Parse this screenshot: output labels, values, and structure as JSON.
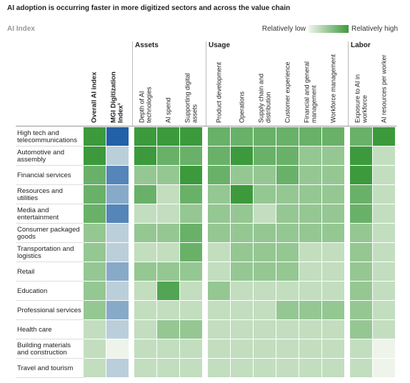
{
  "chart_data": {
    "type": "heatmap",
    "title": "AI adoption is occurring faster in more digitized sectors and across the value chain",
    "subtitle": "AI Index",
    "legend": {
      "low": "Relatively low",
      "high": "Relatively high"
    },
    "color_low": "#eef4ea",
    "vlim": [
      0,
      4
    ],
    "categories": [
      "High tech and telecommunications",
      "Automotive and assembly",
      "Financial services",
      "Resources and utilities",
      "Media and entertainment",
      "Consumer packaged goods",
      "Transportation and logistics",
      "Retail",
      "Education",
      "Professional services",
      "Health care",
      "Building materials and construction",
      "Travel and tourism"
    ],
    "groups": [
      {
        "name": null,
        "series": [
          {
            "name": "Overall AI index",
            "color": "#3c9a3c",
            "values": [
              4,
              4,
              3,
              3,
              3,
              2,
              2,
              2,
              2,
              2,
              1,
              1,
              1
            ]
          },
          {
            "name": "MGI Digitization Index¹",
            "color": "#2260a8",
            "values": [
              4,
              1,
              3,
              2,
              3,
              1,
              1,
              2,
              1,
              2,
              1,
              0,
              1
            ]
          }
        ]
      },
      {
        "name": "Assets",
        "series": [
          {
            "name": "Depth of AI technologies",
            "color": "#3c9a3c",
            "values": [
              4,
              4,
              2,
              3,
              1,
              2,
              1,
              2,
              1,
              1,
              1,
              1,
              1
            ]
          },
          {
            "name": "AI spend",
            "color": "#3c9a3c",
            "values": [
              4,
              3,
              2,
              1,
              1,
              2,
              1,
              2,
              3.5,
              1,
              2,
              1,
              1
            ]
          },
          {
            "name": "Supporting digital assets",
            "color": "#3c9a3c",
            "values": [
              4,
              3,
              4,
              3,
              2,
              3,
              3,
              2,
              1,
              1,
              2,
              1,
              1
            ]
          }
        ]
      },
      {
        "name": "Usage",
        "series": [
          {
            "name": "Product development",
            "color": "#3c9a3c",
            "values": [
              3,
              3,
              3,
              2,
              2,
              2,
              1,
              1,
              2,
              1,
              1,
              1,
              1
            ]
          },
          {
            "name": "Operations",
            "color": "#3c9a3c",
            "values": [
              3,
              4,
              2,
              4,
              2,
              2,
              2,
              2,
              1,
              1,
              1,
              1,
              1
            ]
          },
          {
            "name": "Supply chain and distribution",
            "color": "#3c9a3c",
            "values": [
              3,
              3,
              2,
              2,
              1,
              2,
              2,
              2,
              1,
              1,
              1,
              1,
              1
            ]
          },
          {
            "name": "Customer experience",
            "color": "#3c9a3c",
            "values": [
              3,
              3,
              3,
              2,
              2,
              2,
              2,
              2,
              1,
              2,
              1,
              1,
              1
            ]
          },
          {
            "name": "Financial and general management",
            "color": "#3c9a3c",
            "values": [
              3,
              2,
              2,
              2,
              2,
              2,
              1,
              1,
              1,
              2,
              1,
              1,
              1
            ]
          },
          {
            "name": "Workforce management",
            "color": "#3c9a3c",
            "values": [
              3,
              2,
              2,
              2,
              2,
              2,
              1,
              1,
              1,
              2,
              1,
              1,
              1
            ]
          }
        ]
      },
      {
        "name": "Labor",
        "series": [
          {
            "name": "Exposure to AI in workforce",
            "color": "#3c9a3c",
            "values": [
              3,
              4,
              4,
              3,
              3,
              2,
              2,
              2,
              2,
              2,
              2,
              1,
              1
            ]
          },
          {
            "name": "AI resources per worker",
            "color": "#3c9a3c",
            "values": [
              4,
              1,
              1,
              1,
              1,
              1,
              1,
              1,
              1,
              1,
              1,
              0,
              0
            ]
          }
        ]
      }
    ]
  }
}
